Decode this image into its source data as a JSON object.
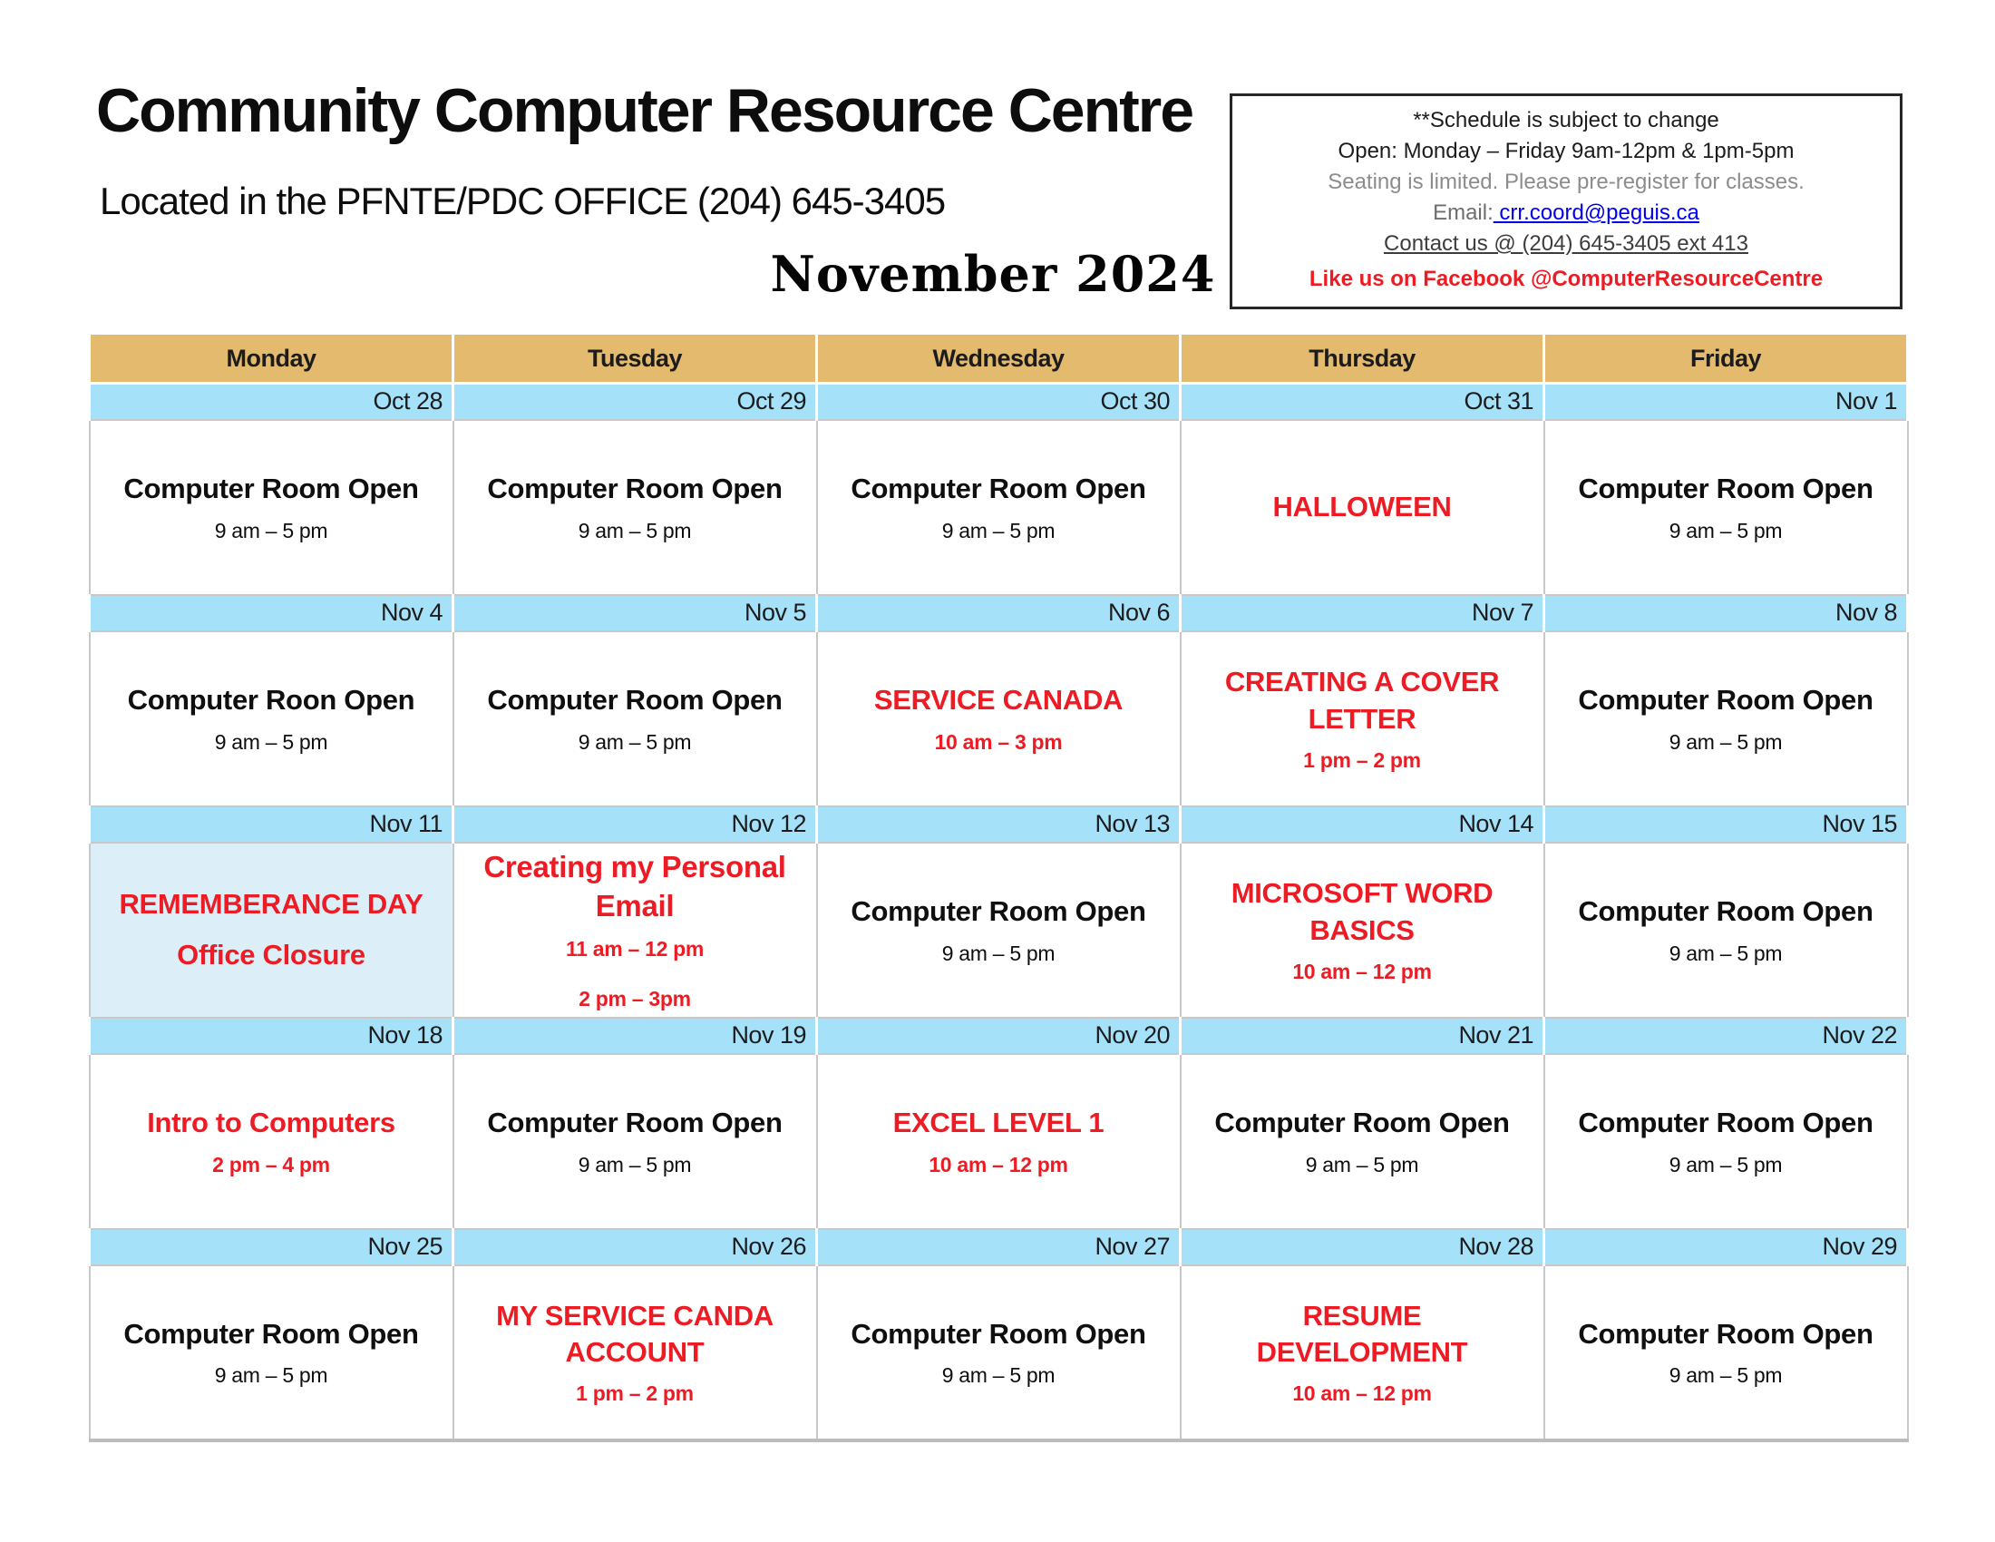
{
  "header": {
    "title": "Community Computer Resource Centre",
    "subtitle": "Located in the PFNTE/PDC OFFICE (204) 645-3405",
    "month_title": "November 2024"
  },
  "info_box": {
    "schedule_note": "**Schedule is subject to change",
    "open_hours": "Open: Monday – Friday  9am-12pm & 1pm-5pm",
    "seating_note": "Seating is limited. Please pre-register for classes.",
    "email_label": "Email:",
    "email_link": " crr.coord@peguis.ca",
    "contact": "Contact us @ (204) 645-3405 ext 413",
    "facebook": "Like us on Facebook @ComputerResourceCentre"
  },
  "colors": {
    "header_row_bg": "#e3ba6e",
    "date_row_bg": "#a5e2fa",
    "closure_cell_bg": "#dceff8",
    "event_red": "#ed1c24",
    "link_blue": "#0000ee",
    "grid_gray": "#c8c8c8"
  },
  "calendar": {
    "day_headers": [
      "Monday",
      "Tuesday",
      "Wednesday",
      "Thursday",
      "Friday"
    ],
    "weeks": [
      {
        "dates": [
          "Oct 28",
          "Oct 29",
          "Oct 30",
          "Oct 31",
          "Nov 1"
        ],
        "cells": [
          {
            "title": "Computer Room Open",
            "time": "9 am – 5 pm"
          },
          {
            "title": "Computer Room Open",
            "time": "9 am – 5 pm"
          },
          {
            "title": "Computer Room Open",
            "time": "9 am – 5 pm"
          },
          {
            "title": "HALLOWEEN"
          },
          {
            "title": "Computer Room Open",
            "time": "9 am – 5 pm"
          }
        ]
      },
      {
        "dates": [
          "Nov 4",
          "Nov 5",
          "Nov 6",
          "Nov 7",
          "Nov 8"
        ],
        "cells": [
          {
            "title": "Computer Roon Open",
            "time": "9 am – 5 pm"
          },
          {
            "title": "Computer Room Open",
            "time": "9 am – 5 pm"
          },
          {
            "title": "SERVICE CANADA",
            "time": "10 am – 3 pm"
          },
          {
            "title": "CREATING A COVER LETTER",
            "time": "1 pm – 2 pm"
          },
          {
            "title": "Computer Room Open",
            "time": "9 am – 5 pm"
          }
        ]
      },
      {
        "dates": [
          "Nov 11",
          "Nov 12",
          "Nov 13",
          "Nov 14",
          "Nov 15"
        ],
        "cells": [
          {
            "title": "REMEMBERANCE DAY",
            "title2": "Office Closure"
          },
          {
            "title": "Creating my Personal Email",
            "time": "11 am – 12 pm",
            "time2": "2 pm – 3pm"
          },
          {
            "title": "Computer Room Open",
            "time": "9 am – 5 pm"
          },
          {
            "title": "MICROSOFT WORD BASICS",
            "time": "10 am – 12 pm"
          },
          {
            "title": "Computer Room Open",
            "time": "9 am – 5 pm"
          }
        ]
      },
      {
        "dates": [
          "Nov 18",
          "Nov 19",
          "Nov 20",
          "Nov 21",
          "Nov 22"
        ],
        "cells": [
          {
            "title": "Intro to Computers",
            "time": "2 pm – 4 pm"
          },
          {
            "title": "Computer Room Open",
            "time": "9 am – 5 pm"
          },
          {
            "title": "EXCEL LEVEL 1",
            "time": "10 am – 12 pm"
          },
          {
            "title": "Computer Room Open",
            "time": "9 am – 5 pm"
          },
          {
            "title": "Computer Room Open",
            "time": "9 am – 5 pm"
          }
        ]
      },
      {
        "dates": [
          "Nov 25",
          "Nov 26",
          "Nov 27",
          "Nov 28",
          "Nov 29"
        ],
        "cells": [
          {
            "title": "Computer Room Open",
            "time": "9 am – 5 pm"
          },
          {
            "title": "MY SERVICE CANDA ACCOUNT",
            "time": "1 pm – 2 pm"
          },
          {
            "title": "Computer Room Open",
            "time": "9 am – 5 pm"
          },
          {
            "title": "RESUME DEVELOPMENT",
            "time": "10 am – 12 pm"
          },
          {
            "title": "Computer Room Open",
            "time": "9 am – 5 pm"
          }
        ]
      }
    ]
  }
}
